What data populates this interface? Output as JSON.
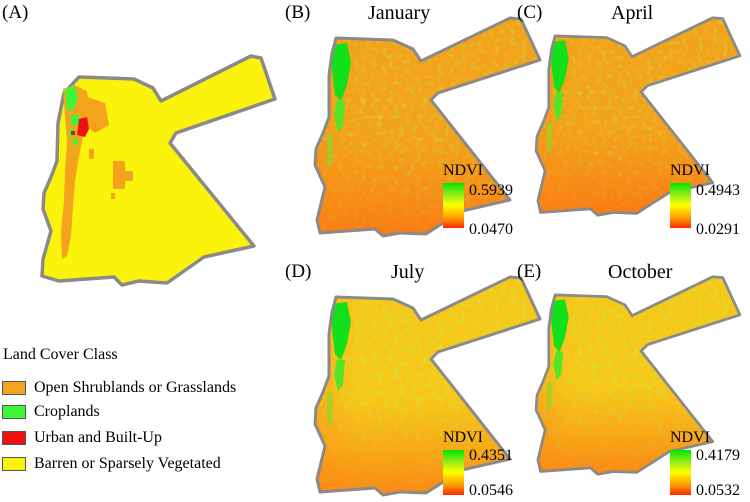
{
  "panel_a": {
    "label": "(A)",
    "legend": {
      "title": "Land Cover Class",
      "items": [
        {
          "label": "Open Shrublands or Grasslands",
          "color": "#f4a41c"
        },
        {
          "label": "Croplands",
          "color": "#3ff53a"
        },
        {
          "label": "Urban and Built-Up",
          "color": "#ee1111"
        },
        {
          "label": "Barren or Sparsely Vegetated",
          "color": "#fbf30c"
        }
      ]
    }
  },
  "ndvi_panels": [
    {
      "label": "(B)",
      "month": "January",
      "legend_title": "NDVI",
      "max": "0.5939",
      "min": "0.0470"
    },
    {
      "label": "(C)",
      "month": "April",
      "legend_title": "NDVI",
      "max": "0.4943",
      "min": "0.0291"
    },
    {
      "label": "(D)",
      "month": "July",
      "legend_title": "NDVI",
      "max": "0.4351",
      "min": "0.0546"
    },
    {
      "label": "(E)",
      "month": "October",
      "legend_title": "NDVI",
      "max": "0.4179",
      "min": "0.0532"
    }
  ],
  "colors": {
    "ndvi_high": "#00e400",
    "ndvi_mid": "#ffff00",
    "ndvi_low": "#ff2a00",
    "border": "#8a8a8a"
  }
}
